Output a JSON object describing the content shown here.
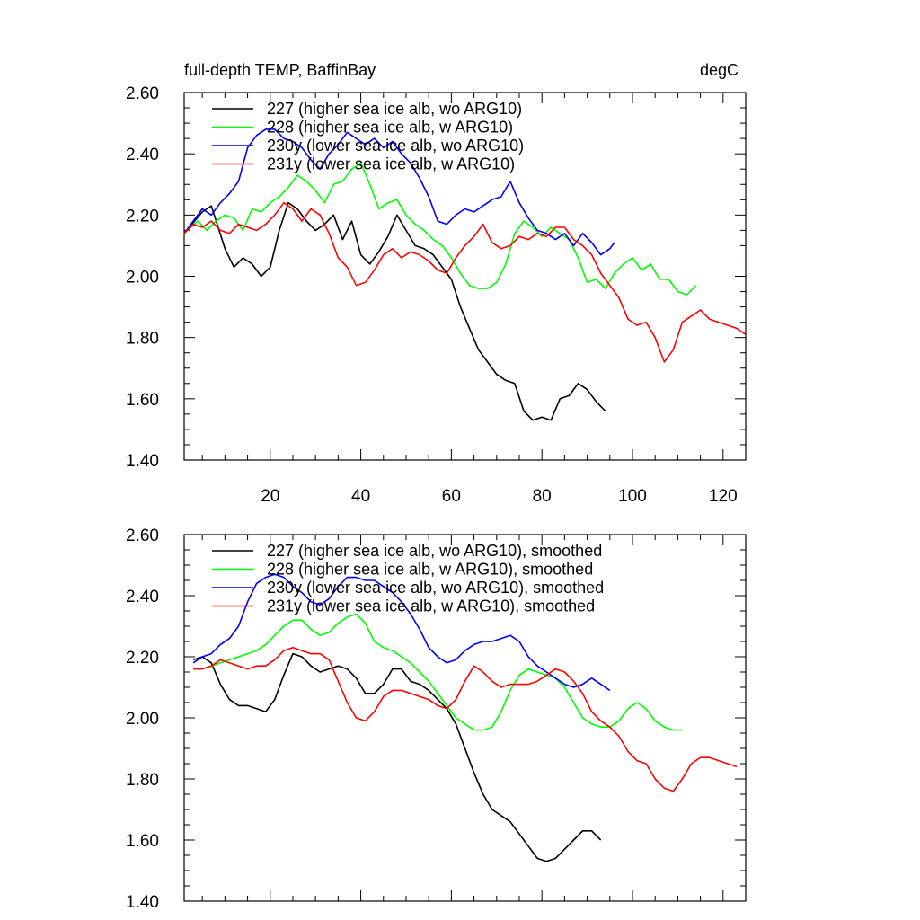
{
  "title_left": "full-depth TEMP, BaffinBay",
  "title_right": "degC",
  "colors": {
    "227": "#000000",
    "228": "#00ff00",
    "230y": "#0000ff",
    "231y": "#ff0000"
  },
  "chart_data": [
    {
      "type": "line",
      "panel": "top",
      "title": "full-depth TEMP, BaffinBay",
      "units": "degC",
      "xlim": [
        1,
        125
      ],
      "ylim": [
        1.4,
        2.6
      ],
      "x_ticks": [
        20,
        40,
        60,
        80,
        100,
        120
      ],
      "x_tick_labels": [
        "20",
        "40",
        "60",
        "80",
        "100",
        "120"
      ],
      "y_ticks": [
        1.4,
        1.6,
        1.8,
        2.0,
        2.2,
        2.4,
        2.6
      ],
      "y_tick_labels": [
        "1.40",
        "1.60",
        "1.80",
        "2.00",
        "2.20",
        "2.40",
        "2.60"
      ],
      "legend_position": "top-left",
      "series": [
        {
          "name": "227 (higher sea ice alb, wo ARG10)",
          "color": "#000000",
          "x": [
            1,
            5,
            7,
            10,
            12,
            14,
            16,
            18,
            20,
            22,
            24,
            26,
            28,
            30,
            32,
            34,
            36,
            38,
            40,
            42,
            44,
            46,
            48,
            50,
            52,
            54,
            56,
            58,
            60,
            62,
            64,
            66,
            68,
            70,
            72,
            74,
            76,
            78,
            80,
            82,
            84,
            86,
            88,
            90,
            92,
            94
          ],
          "y": [
            2.14,
            2.21,
            2.23,
            2.09,
            2.03,
            2.06,
            2.04,
            2.0,
            2.03,
            2.15,
            2.24,
            2.22,
            2.18,
            2.15,
            2.17,
            2.2,
            2.12,
            2.18,
            2.07,
            2.04,
            2.08,
            2.13,
            2.2,
            2.15,
            2.1,
            2.09,
            2.07,
            2.03,
            1.99,
            1.9,
            1.83,
            1.76,
            1.72,
            1.68,
            1.66,
            1.65,
            1.56,
            1.53,
            1.54,
            1.53,
            1.6,
            1.61,
            1.65,
            1.63,
            1.59,
            1.56
          ]
        },
        {
          "name": "228 (higher sea ice alb, w ARG10)",
          "color": "#00ff00",
          "x": [
            1,
            4,
            6,
            8,
            10,
            12,
            14,
            16,
            18,
            20,
            22,
            24,
            26,
            28,
            30,
            32,
            34,
            36,
            38,
            40,
            42,
            44,
            46,
            48,
            50,
            52,
            54,
            56,
            58,
            60,
            62,
            64,
            66,
            68,
            70,
            72,
            74,
            76,
            78,
            80,
            82,
            84,
            86,
            88,
            90,
            92,
            94,
            96,
            98,
            100,
            102,
            104,
            106,
            108,
            110,
            112,
            114
          ],
          "y": [
            2.14,
            2.18,
            2.15,
            2.18,
            2.2,
            2.19,
            2.15,
            2.22,
            2.21,
            2.24,
            2.26,
            2.29,
            2.33,
            2.31,
            2.28,
            2.24,
            2.3,
            2.31,
            2.35,
            2.37,
            2.3,
            2.22,
            2.24,
            2.25,
            2.2,
            2.17,
            2.15,
            2.12,
            2.1,
            2.06,
            2.01,
            1.97,
            1.96,
            1.96,
            1.98,
            2.04,
            2.14,
            2.18,
            2.16,
            2.13,
            2.16,
            2.14,
            2.12,
            2.06,
            1.98,
            1.99,
            1.96,
            2.01,
            2.04,
            2.06,
            2.02,
            2.04,
            1.99,
            1.99,
            1.95,
            1.94,
            1.97
          ]
        },
        {
          "name": "230y (lower sea ice alb, wo ARG10)",
          "color": "#0000ff",
          "x": [
            1,
            3,
            5,
            7,
            9,
            11,
            13,
            15,
            17,
            19,
            21,
            23,
            25,
            27,
            29,
            31,
            33,
            35,
            37,
            39,
            41,
            43,
            45,
            47,
            49,
            51,
            53,
            55,
            57,
            59,
            61,
            63,
            65,
            67,
            69,
            71,
            73,
            75,
            77,
            79,
            81,
            83,
            85,
            87,
            89,
            91,
            93,
            95,
            96
          ],
          "y": [
            2.14,
            2.18,
            2.22,
            2.2,
            2.24,
            2.27,
            2.31,
            2.42,
            2.46,
            2.48,
            2.48,
            2.45,
            2.44,
            2.42,
            2.38,
            2.35,
            2.4,
            2.43,
            2.47,
            2.45,
            2.43,
            2.45,
            2.42,
            2.44,
            2.4,
            2.37,
            2.32,
            2.26,
            2.18,
            2.17,
            2.2,
            2.22,
            2.21,
            2.23,
            2.25,
            2.26,
            2.31,
            2.24,
            2.19,
            2.15,
            2.14,
            2.12,
            2.14,
            2.1,
            2.14,
            2.11,
            2.07,
            2.09,
            2.11
          ]
        },
        {
          "name": "231y (lower sea ice alb, w ARG10)",
          "color": "#ff0000",
          "x": [
            1,
            3,
            5,
            7,
            9,
            11,
            13,
            15,
            17,
            19,
            21,
            23,
            25,
            27,
            29,
            31,
            33,
            35,
            37,
            39,
            41,
            43,
            45,
            47,
            49,
            51,
            53,
            55,
            57,
            59,
            61,
            63,
            65,
            67,
            69,
            71,
            73,
            75,
            77,
            79,
            81,
            83,
            85,
            87,
            89,
            91,
            93,
            95,
            97,
            99,
            101,
            103,
            105,
            107,
            109,
            111,
            113,
            115,
            117,
            119,
            121,
            123,
            125
          ],
          "y": [
            2.14,
            2.17,
            2.16,
            2.18,
            2.15,
            2.14,
            2.17,
            2.16,
            2.15,
            2.17,
            2.2,
            2.24,
            2.22,
            2.18,
            2.22,
            2.2,
            2.14,
            2.06,
            2.03,
            1.97,
            1.98,
            2.02,
            2.07,
            2.09,
            2.06,
            2.08,
            2.07,
            2.05,
            2.02,
            2.01,
            2.06,
            2.1,
            2.13,
            2.17,
            2.11,
            2.09,
            2.1,
            2.13,
            2.12,
            2.14,
            2.13,
            2.16,
            2.16,
            2.12,
            2.1,
            2.07,
            2.01,
            1.97,
            1.93,
            1.86,
            1.84,
            1.85,
            1.8,
            1.72,
            1.76,
            1.85,
            1.87,
            1.89,
            1.86,
            1.85,
            1.84,
            1.83,
            1.81
          ]
        }
      ]
    },
    {
      "type": "line",
      "panel": "bottom",
      "xlim": [
        1,
        125
      ],
      "ylim": [
        1.4,
        2.6
      ],
      "x_ticks": [
        20,
        40,
        60,
        80,
        100,
        120
      ],
      "x_tick_labels": [],
      "y_ticks": [
        1.4,
        1.6,
        1.8,
        2.0,
        2.2,
        2.4,
        2.6
      ],
      "y_tick_labels": [
        "1.40",
        "1.60",
        "1.80",
        "2.00",
        "2.20",
        "2.40",
        "2.60"
      ],
      "legend_position": "top-left",
      "series": [
        {
          "name": "227 (higher sea ice alb, wo ARG10), smoothed",
          "color": "#000000",
          "x": [
            3,
            5,
            7,
            9,
            11,
            13,
            15,
            17,
            19,
            21,
            23,
            25,
            27,
            29,
            31,
            33,
            35,
            37,
            39,
            41,
            43,
            45,
            47,
            49,
            51,
            53,
            55,
            57,
            59,
            61,
            63,
            65,
            67,
            69,
            71,
            73,
            75,
            77,
            79,
            81,
            83,
            85,
            87,
            89,
            91,
            93
          ],
          "y": [
            2.19,
            2.2,
            2.18,
            2.11,
            2.06,
            2.04,
            2.04,
            2.03,
            2.02,
            2.06,
            2.14,
            2.21,
            2.2,
            2.17,
            2.15,
            2.16,
            2.17,
            2.16,
            2.13,
            2.08,
            2.08,
            2.11,
            2.16,
            2.16,
            2.12,
            2.11,
            2.09,
            2.06,
            2.03,
            1.98,
            1.9,
            1.82,
            1.75,
            1.7,
            1.68,
            1.66,
            1.62,
            1.58,
            1.54,
            1.53,
            1.54,
            1.57,
            1.6,
            1.63,
            1.63,
            1.6
          ]
        },
        {
          "name": "228 (higher sea ice alb, w ARG10), smoothed",
          "color": "#00ff00",
          "x": [
            3,
            5,
            7,
            9,
            11,
            13,
            15,
            17,
            19,
            21,
            23,
            25,
            27,
            29,
            31,
            33,
            35,
            37,
            39,
            41,
            43,
            45,
            47,
            49,
            51,
            53,
            55,
            57,
            59,
            61,
            63,
            65,
            67,
            69,
            71,
            73,
            75,
            77,
            79,
            81,
            83,
            85,
            87,
            89,
            91,
            93,
            95,
            97,
            99,
            101,
            103,
            105,
            107,
            109,
            111
          ],
          "y": [
            2.16,
            2.16,
            2.17,
            2.18,
            2.19,
            2.2,
            2.21,
            2.22,
            2.24,
            2.27,
            2.3,
            2.32,
            2.32,
            2.29,
            2.27,
            2.28,
            2.31,
            2.33,
            2.34,
            2.31,
            2.25,
            2.23,
            2.22,
            2.2,
            2.18,
            2.15,
            2.12,
            2.08,
            2.04,
            2.0,
            1.98,
            1.96,
            1.96,
            1.97,
            2.02,
            2.09,
            2.14,
            2.16,
            2.15,
            2.14,
            2.13,
            2.1,
            2.05,
            2.0,
            1.98,
            1.97,
            1.97,
            1.99,
            2.03,
            2.05,
            2.03,
            1.99,
            1.97,
            1.96,
            1.96
          ]
        },
        {
          "name": "230y (lower sea ice alb, wo ARG10), smoothed",
          "color": "#0000ff",
          "x": [
            3,
            5,
            7,
            9,
            11,
            13,
            15,
            17,
            19,
            21,
            23,
            25,
            27,
            29,
            31,
            33,
            35,
            37,
            39,
            41,
            43,
            45,
            47,
            49,
            51,
            53,
            55,
            57,
            59,
            61,
            63,
            65,
            67,
            69,
            71,
            73,
            75,
            77,
            79,
            81,
            83,
            85,
            87,
            89,
            91,
            93,
            95
          ],
          "y": [
            2.18,
            2.2,
            2.21,
            2.24,
            2.26,
            2.3,
            2.38,
            2.44,
            2.46,
            2.47,
            2.46,
            2.43,
            2.41,
            2.38,
            2.37,
            2.39,
            2.43,
            2.46,
            2.46,
            2.45,
            2.45,
            2.43,
            2.41,
            2.38,
            2.34,
            2.29,
            2.23,
            2.2,
            2.18,
            2.19,
            2.22,
            2.24,
            2.25,
            2.25,
            2.26,
            2.27,
            2.25,
            2.2,
            2.17,
            2.15,
            2.13,
            2.11,
            2.1,
            2.11,
            2.13,
            2.11,
            2.09
          ]
        },
        {
          "name": "231y (lower sea ice alb, w ARG10), smoothed",
          "color": "#ff0000",
          "x": [
            3,
            5,
            7,
            9,
            11,
            13,
            15,
            17,
            19,
            21,
            23,
            25,
            27,
            29,
            31,
            33,
            35,
            37,
            39,
            41,
            43,
            45,
            47,
            49,
            51,
            53,
            55,
            57,
            59,
            61,
            63,
            65,
            67,
            69,
            71,
            73,
            75,
            77,
            79,
            81,
            83,
            85,
            87,
            89,
            91,
            93,
            95,
            97,
            99,
            101,
            103,
            105,
            107,
            109,
            111,
            113,
            115,
            117,
            119,
            121,
            123
          ],
          "y": [
            2.16,
            2.16,
            2.17,
            2.19,
            2.18,
            2.17,
            2.16,
            2.17,
            2.17,
            2.19,
            2.22,
            2.23,
            2.22,
            2.21,
            2.21,
            2.19,
            2.12,
            2.05,
            2.0,
            1.99,
            2.02,
            2.07,
            2.09,
            2.09,
            2.08,
            2.07,
            2.06,
            2.04,
            2.03,
            2.06,
            2.12,
            2.17,
            2.15,
            2.12,
            2.1,
            2.11,
            2.11,
            2.11,
            2.12,
            2.14,
            2.16,
            2.15,
            2.12,
            2.08,
            2.02,
            1.99,
            1.97,
            1.94,
            1.89,
            1.86,
            1.85,
            1.8,
            1.77,
            1.76,
            1.8,
            1.85,
            1.87,
            1.87,
            1.86,
            1.85,
            1.84
          ]
        }
      ]
    }
  ]
}
